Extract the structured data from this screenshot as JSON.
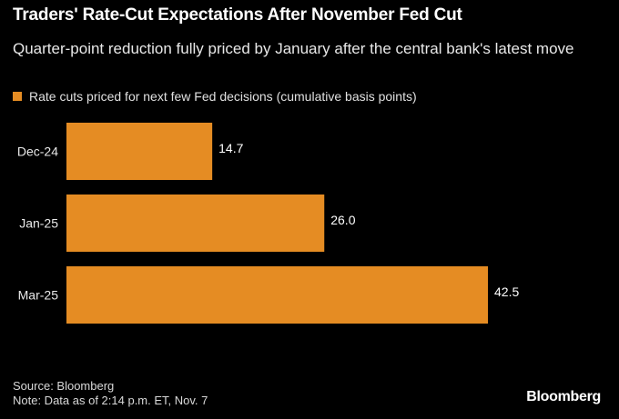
{
  "colors": {
    "background": "#000000",
    "bar": "#E58C23",
    "text": "#ffffff"
  },
  "header": {
    "title": "Traders' Rate-Cut Expectations After November Fed Cut",
    "subtitle": "Quarter-point reduction fully priced by January after the central bank's latest move"
  },
  "footer": {
    "source": "Source: Bloomberg",
    "note": "Note: Data as of 2:14 p.m. ET, Nov. 7",
    "logo": "Bloomberg"
  },
  "chart_data": {
    "type": "bar",
    "orientation": "horizontal",
    "title": "Traders' Rate-Cut Expectations After November Fed Cut",
    "subtitle": "Quarter-point reduction fully priced by January after the central bank's latest move",
    "categories": [
      "Dec-24",
      "Jan-25",
      "Mar-25"
    ],
    "series": [
      {
        "name": "Rate cuts priced for next few Fed decisions (cumulative basis points)",
        "values": [
          14.7,
          26.0,
          42.5
        ],
        "labels": [
          "14.7",
          "26.0",
          "42.5"
        ]
      }
    ],
    "xlim": [
      0,
      42.5
    ],
    "grid": false,
    "legend": "top-left"
  }
}
